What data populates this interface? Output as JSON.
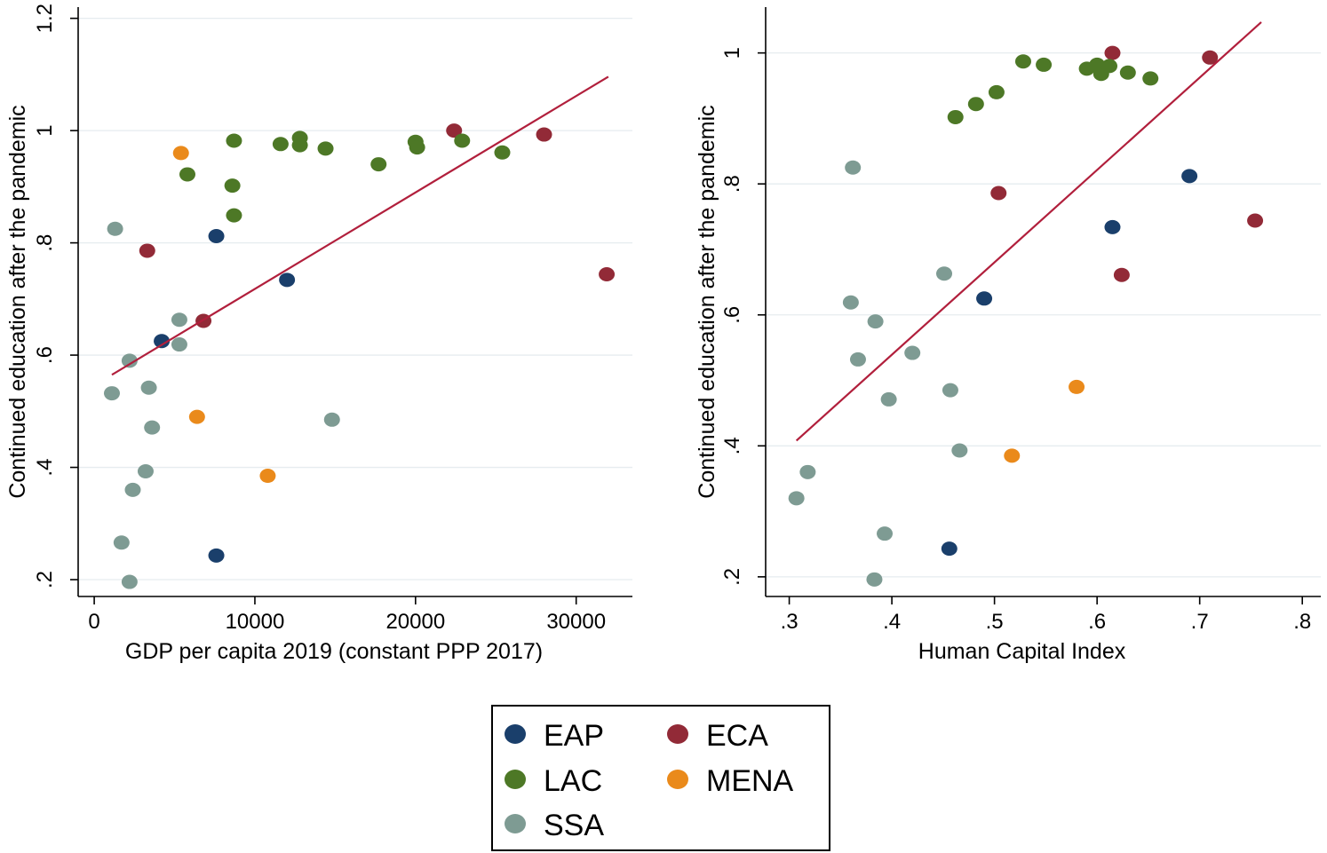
{
  "colors": {
    "EAP": "#1a3f6b",
    "ECA": "#922a37",
    "LAC": "#4d7826",
    "MENA": "#ea8a1b",
    "SSA": "#7e9b93",
    "fit_line": "#b11f3c",
    "grid": "#e6ecef"
  },
  "legend": [
    {
      "key": "EAP",
      "label": "EAP"
    },
    {
      "key": "ECA",
      "label": "ECA"
    },
    {
      "key": "LAC",
      "label": "LAC"
    },
    {
      "key": "MENA",
      "label": "MENA"
    },
    {
      "key": "SSA",
      "label": "SSA"
    }
  ],
  "chart_data": [
    {
      "type": "scatter",
      "xlabel": "GDP per capita 2019 (constant PPP 2017)",
      "ylabel": "Continued education after the pandemic",
      "xlim": [
        -1000,
        33500
      ],
      "ylim": [
        0.17,
        1.22
      ],
      "xticks": [
        0,
        10000,
        20000,
        30000
      ],
      "xtick_labels": [
        "0",
        "10000",
        "20000",
        "30000"
      ],
      "yticks": [
        0.2,
        0.4,
        0.6,
        0.8,
        1.0,
        1.2
      ],
      "ytick_labels": [
        ".2",
        ".4",
        ".6",
        ".8",
        "1",
        "1.2"
      ],
      "grid": true,
      "fit_line": [
        [
          1100,
          0.565
        ],
        [
          32000,
          1.096
        ]
      ],
      "series": [
        {
          "name": "EAP",
          "points": [
            [
              4200,
              0.625
            ],
            [
              7600,
              0.812
            ],
            [
              12000,
              0.734
            ],
            [
              7600,
              0.243
            ]
          ]
        },
        {
          "name": "ECA",
          "points": [
            [
              3300,
              0.786
            ],
            [
              6800,
              0.661
            ],
            [
              22400,
              1.0
            ],
            [
              28000,
              0.993
            ],
            [
              31900,
              0.744
            ]
          ]
        },
        {
          "name": "LAC",
          "points": [
            [
              5800,
              0.922
            ],
            [
              8700,
              0.982
            ],
            [
              8600,
              0.902
            ],
            [
              8700,
              0.849
            ],
            [
              11600,
              0.976
            ],
            [
              12800,
              0.987
            ],
            [
              12800,
              0.974
            ],
            [
              14400,
              0.968
            ],
            [
              17700,
              0.94
            ],
            [
              20000,
              0.98
            ],
            [
              20100,
              0.97
            ],
            [
              22900,
              0.982
            ],
            [
              25400,
              0.961
            ]
          ]
        },
        {
          "name": "MENA",
          "points": [
            [
              5400,
              0.96
            ],
            [
              6400,
              0.49
            ],
            [
              10800,
              0.385
            ]
          ]
        },
        {
          "name": "SSA",
          "points": [
            [
              1300,
              0.825
            ],
            [
              1100,
              0.532
            ],
            [
              2200,
              0.59
            ],
            [
              3400,
              0.542
            ],
            [
              3600,
              0.471
            ],
            [
              3200,
              0.393
            ],
            [
              2400,
              0.36
            ],
            [
              1700,
              0.266
            ],
            [
              2200,
              0.196
            ],
            [
              5300,
              0.663
            ],
            [
              5300,
              0.619
            ],
            [
              14800,
              0.485
            ]
          ]
        }
      ]
    },
    {
      "type": "scatter",
      "xlabel": "Human Capital Index",
      "ylabel": "Continued education after the pandemic",
      "xlim": [
        0.277,
        0.818
      ],
      "ylim": [
        0.17,
        1.07
      ],
      "xticks": [
        0.3,
        0.4,
        0.5,
        0.6,
        0.7,
        0.8
      ],
      "xtick_labels": [
        ".3",
        ".4",
        ".5",
        ".6",
        ".7",
        ".8"
      ],
      "yticks": [
        0.2,
        0.4,
        0.6,
        0.8,
        1.0
      ],
      "ytick_labels": [
        ".2",
        ".4",
        ".6",
        ".8",
        "1"
      ],
      "grid": true,
      "fit_line": [
        [
          0.307,
          0.408
        ],
        [
          0.76,
          1.047
        ]
      ],
      "series": [
        {
          "name": "EAP",
          "points": [
            [
              0.49,
              0.625
            ],
            [
              0.615,
              0.734
            ],
            [
              0.69,
              0.812
            ],
            [
              0.456,
              0.243
            ]
          ]
        },
        {
          "name": "ECA",
          "points": [
            [
              0.615,
              1.0
            ],
            [
              0.71,
              0.993
            ],
            [
              0.504,
              0.786
            ],
            [
              0.624,
              0.661
            ],
            [
              0.754,
              0.744
            ]
          ]
        },
        {
          "name": "LAC",
          "points": [
            [
              0.528,
              0.987
            ],
            [
              0.548,
              0.982
            ],
            [
              0.462,
              0.902
            ],
            [
              0.482,
              0.922
            ],
            [
              0.502,
              0.94
            ],
            [
              0.59,
              0.976
            ],
            [
              0.6,
              0.982
            ],
            [
              0.604,
              0.968
            ],
            [
              0.612,
              0.98
            ],
            [
              0.63,
              0.97
            ],
            [
              0.652,
              0.961
            ]
          ]
        },
        {
          "name": "MENA",
          "points": [
            [
              0.58,
              0.49
            ],
            [
              0.517,
              0.385
            ]
          ]
        },
        {
          "name": "SSA",
          "points": [
            [
              0.362,
              0.825
            ],
            [
              0.36,
              0.619
            ],
            [
              0.367,
              0.532
            ],
            [
              0.384,
              0.59
            ],
            [
              0.451,
              0.663
            ],
            [
              0.42,
              0.542
            ],
            [
              0.397,
              0.471
            ],
            [
              0.457,
              0.485
            ],
            [
              0.466,
              0.393
            ],
            [
              0.318,
              0.36
            ],
            [
              0.307,
              0.32
            ],
            [
              0.393,
              0.266
            ],
            [
              0.383,
              0.196
            ]
          ]
        }
      ]
    }
  ]
}
